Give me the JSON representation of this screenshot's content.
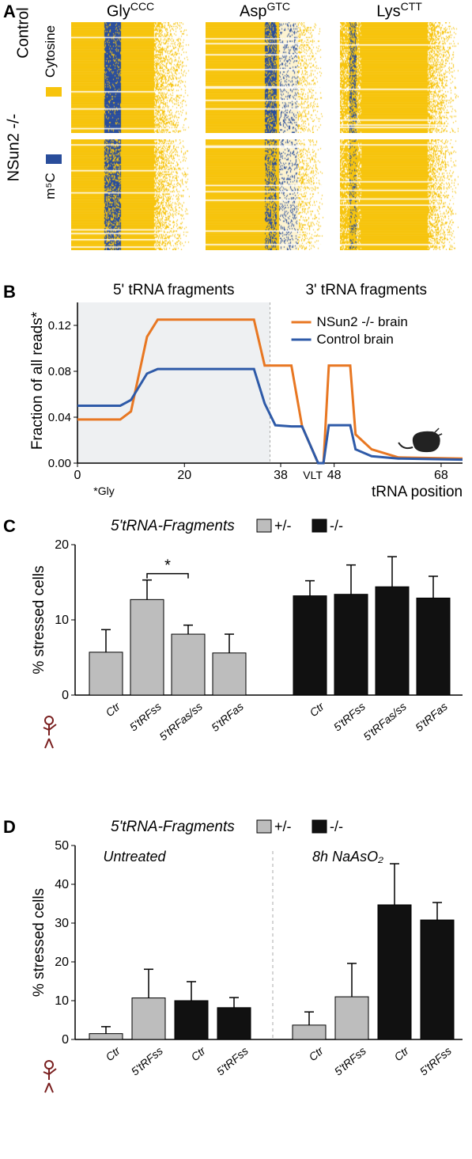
{
  "panelA": {
    "label": "A",
    "columns": [
      {
        "title_prefix": "Gly",
        "title_sup": "CCC"
      },
      {
        "title_prefix": "Asp",
        "title_sup": "GTC"
      },
      {
        "title_prefix": "Lys",
        "title_sup": "CTT"
      }
    ],
    "rows": [
      "Control",
      "NSun2 -/-"
    ],
    "color_legend": [
      {
        "color": "#f7c40d",
        "label": "Cytosine"
      },
      {
        "color": "#294d9b",
        "label": "m⁵C"
      }
    ],
    "heatmap_colors": {
      "yellow": "#f7c40d",
      "blue": "#294d9b",
      "white": "#ffffff",
      "light": "#fdf3d0"
    },
    "heatmap_cell": {
      "w": 150,
      "h": 140
    },
    "heatmaps": {
      "gly_ctrl": {
        "blue_band": [
          0.28,
          0.42
        ],
        "fade_start": 0.7,
        "blue_density": 0.85
      },
      "gly_ko": {
        "blue_band": [
          0.28,
          0.42
        ],
        "fade_start": 0.7,
        "blue_density": 0.65
      },
      "asp_ctrl": {
        "blue_band": [
          0.5,
          0.6
        ],
        "fade_start": 0.62,
        "blue_density": 0.7,
        "light_zone": [
          0.62,
          0.78
        ]
      },
      "asp_ko": {
        "blue_band": [
          0.5,
          0.6
        ],
        "fade_start": 0.62,
        "blue_density": 0.4,
        "light_zone": [
          0.62,
          0.78
        ]
      },
      "lys_ctrl": {
        "blue_band": [
          0.08,
          0.14
        ],
        "fade_start": 0.74,
        "blue_density": 0.4,
        "sparse": true
      },
      "lys_ko": {
        "blue_band": [
          0.08,
          0.14
        ],
        "fade_start": 0.74,
        "blue_density": 0.2,
        "sparse": true
      }
    }
  },
  "panelB": {
    "label": "B",
    "title_left": "5' tRNA fragments",
    "title_right": "3' tRNA fragments",
    "ylabel": "Fraction of all reads*",
    "xlabel": "tRNA position",
    "footnote": "*Gly",
    "vlt_label": "VLT",
    "xlim": [
      0,
      72
    ],
    "ylim": [
      0,
      0.14
    ],
    "xticks": [
      0,
      20,
      38,
      48,
      68
    ],
    "xtick_labels": [
      "0",
      "20",
      "38",
      "48",
      "68"
    ],
    "yticks": [
      0.0,
      0.04,
      0.08,
      0.12
    ],
    "split_x": 36,
    "series": [
      {
        "name": "NSun2 -/- brain",
        "color": "#e87722",
        "points": [
          [
            0,
            0.038
          ],
          [
            8,
            0.038
          ],
          [
            10,
            0.045
          ],
          [
            13,
            0.11
          ],
          [
            15,
            0.125
          ],
          [
            33,
            0.125
          ],
          [
            35,
            0.085
          ],
          [
            37,
            0.085
          ],
          [
            40,
            0.085
          ],
          [
            42,
            0.032
          ],
          [
            45,
            0.0
          ],
          [
            46,
            0.0
          ],
          [
            47,
            0.085
          ],
          [
            51,
            0.085
          ],
          [
            52,
            0.025
          ],
          [
            55,
            0.012
          ],
          [
            60,
            0.005
          ],
          [
            72,
            0.004
          ]
        ]
      },
      {
        "name": "Control brain",
        "color": "#2e5aa8",
        "points": [
          [
            0,
            0.05
          ],
          [
            8,
            0.05
          ],
          [
            10,
            0.055
          ],
          [
            13,
            0.078
          ],
          [
            15,
            0.082
          ],
          [
            33,
            0.082
          ],
          [
            35,
            0.052
          ],
          [
            37,
            0.033
          ],
          [
            40,
            0.032
          ],
          [
            42,
            0.032
          ],
          [
            45,
            0.0
          ],
          [
            46,
            0.0
          ],
          [
            47,
            0.033
          ],
          [
            51,
            0.033
          ],
          [
            52,
            0.012
          ],
          [
            55,
            0.006
          ],
          [
            60,
            0.004
          ],
          [
            72,
            0.003
          ]
        ]
      }
    ]
  },
  "panelC": {
    "label": "C",
    "title": "5'tRNA-Fragments",
    "ylabel": "% stressed cells",
    "ylim": [
      0,
      20
    ],
    "yticks": [
      0,
      10,
      20
    ],
    "legend": [
      {
        "label": "+/-",
        "color": "#bdbdbd"
      },
      {
        "label": "-/-",
        "color": "#111111"
      }
    ],
    "categories": [
      "Ctr",
      "5'tRFss",
      "5'tRFas/ss",
      "5'tRFas"
    ],
    "groups": [
      {
        "color": "#bdbdbd",
        "bars": [
          {
            "label": "Ctr",
            "value": 5.7,
            "err": 3.0
          },
          {
            "label": "5'tRFss",
            "value": 12.7,
            "err": 2.6
          },
          {
            "label": "5'tRFas/ss",
            "value": 8.1,
            "err": 1.2
          },
          {
            "label": "5'tRFas",
            "value": 5.6,
            "err": 2.5
          }
        ]
      },
      {
        "color": "#111111",
        "bars": [
          {
            "label": "Ctr",
            "value": 13.2,
            "err": 2.0
          },
          {
            "label": "5'tRFss",
            "value": 13.4,
            "err": 3.9
          },
          {
            "label": "5'tRFas/ss",
            "value": 14.4,
            "err": 4.0
          },
          {
            "label": "5'tRFas",
            "value": 12.9,
            "err": 2.9
          }
        ]
      }
    ],
    "signif": {
      "between": [
        1,
        2
      ],
      "label": "*"
    }
  },
  "panelD": {
    "label": "D",
    "title": "5'tRNA-Fragments",
    "subtitle_left": "Untreated",
    "subtitle_right": "8h NaAsO₂",
    "ylabel": "% stressed cells",
    "ylim": [
      0,
      50
    ],
    "yticks": [
      0,
      10,
      20,
      30,
      40,
      50
    ],
    "legend": [
      {
        "label": "+/-",
        "color": "#bdbdbd"
      },
      {
        "label": "-/-",
        "color": "#111111"
      }
    ],
    "groups": [
      {
        "side": "left",
        "bars": [
          {
            "label": "Ctr",
            "value": 1.5,
            "err": 1.8,
            "color": "#bdbdbd"
          },
          {
            "label": "5'tRFss",
            "value": 10.7,
            "err": 7.4,
            "color": "#bdbdbd"
          },
          {
            "label": "Ctr",
            "value": 10.0,
            "err": 4.9,
            "color": "#111111"
          },
          {
            "label": "5'tRFss",
            "value": 8.2,
            "err": 2.6,
            "color": "#111111"
          }
        ]
      },
      {
        "side": "right",
        "bars": [
          {
            "label": "Ctr",
            "value": 3.7,
            "err": 3.4,
            "color": "#bdbdbd"
          },
          {
            "label": "5'tRFss",
            "value": 11.0,
            "err": 8.6,
            "color": "#bdbdbd"
          },
          {
            "label": "Ctr",
            "value": 34.7,
            "err": 10.6,
            "color": "#111111"
          },
          {
            "label": "5'tRFss",
            "value": 30.8,
            "err": 4.5,
            "color": "#111111"
          }
        ]
      }
    ]
  }
}
